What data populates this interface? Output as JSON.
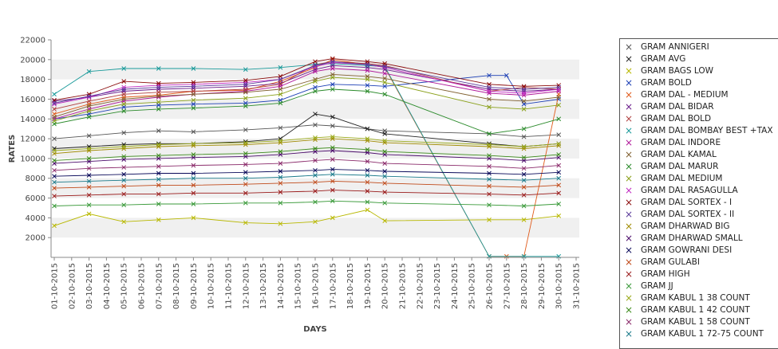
{
  "chart_data": {
    "type": "line",
    "xlabel": "DAYS",
    "ylabel": "RATES",
    "ylim": [
      0,
      22000
    ],
    "yticks": [
      2000,
      4000,
      6000,
      8000,
      10000,
      12000,
      14000,
      16000,
      18000,
      20000,
      22000
    ],
    "x_ticks": [
      "01-10-2015",
      "02-10-2015",
      "03-10-2015",
      "04-10-2015",
      "05-10-2015",
      "06-10-2015",
      "07-10-2015",
      "08-10-2015",
      "09-10-2015",
      "10-10-2015",
      "11-10-2015",
      "12-10-2015",
      "13-10-2015",
      "14-10-2015",
      "15-10-2015",
      "16-10-2015",
      "17-10-2015",
      "18-10-2015",
      "19-10-2015",
      "20-10-2015",
      "21-10-2015",
      "22-10-2015",
      "23-10-2015",
      "24-10-2015",
      "25-10-2015",
      "26-10-2015",
      "27-10-2015",
      "28-10-2015",
      "29-10-2015",
      "30-10-2015",
      "31-10-2015"
    ],
    "grid": "horizontal alternating bands",
    "legend_position": "right",
    "series": [
      {
        "name": "GRAM ANNIGERI",
        "color": "#555555",
        "x": [
          "01-10-2015",
          "03-10-2015",
          "05-10-2015",
          "07-10-2015",
          "09-10-2015",
          "12-10-2015",
          "14-10-2015",
          "16-10-2015",
          "17-10-2015",
          "19-10-2015",
          "20-10-2015",
          "26-10-2015",
          "28-10-2015",
          "30-10-2015"
        ],
        "values": [
          12000,
          12300,
          12600,
          12800,
          12700,
          12900,
          13100,
          13400,
          13300,
          13000,
          12800,
          12500,
          12200,
          12400
        ]
      },
      {
        "name": "GRAM AVG",
        "color": "#222222",
        "x": [
          "01-10-2015",
          "03-10-2015",
          "05-10-2015",
          "07-10-2015",
          "09-10-2015",
          "12-10-2015",
          "14-10-2015",
          "16-10-2015",
          "17-10-2015",
          "19-10-2015",
          "20-10-2015",
          "26-10-2015",
          "28-10-2015",
          "30-10-2015"
        ],
        "values": [
          11000,
          11200,
          11400,
          11500,
          11500,
          11700,
          12000,
          14500,
          14200,
          13000,
          12500,
          11500,
          11200,
          11500
        ]
      },
      {
        "name": "GRAM BAGS LOW",
        "color": "#b8b800",
        "x": [
          "01-10-2015",
          "03-10-2015",
          "05-10-2015",
          "07-10-2015",
          "09-10-2015",
          "12-10-2015",
          "14-10-2015",
          "16-10-2015",
          "17-10-2015",
          "19-10-2015",
          "20-10-2015",
          "26-10-2015",
          "28-10-2015",
          "30-10-2015"
        ],
        "values": [
          3200,
          4400,
          3600,
          3800,
          4000,
          3500,
          3400,
          3600,
          4000,
          4800,
          3700,
          3800,
          3800,
          4200
        ]
      },
      {
        "name": "GRAM BOLD",
        "color": "#1c3fb5",
        "x": [
          "01-10-2015",
          "03-10-2015",
          "05-10-2015",
          "07-10-2015",
          "09-10-2015",
          "12-10-2015",
          "14-10-2015",
          "16-10-2015",
          "17-10-2015",
          "19-10-2015",
          "20-10-2015",
          "26-10-2015",
          "27-10-2015",
          "28-10-2015",
          "30-10-2015"
        ],
        "values": [
          14000,
          14500,
          15200,
          15400,
          15500,
          15600,
          15900,
          17200,
          17500,
          17400,
          17300,
          18400,
          18400,
          15500,
          16000
        ]
      },
      {
        "name": "GRAM DAL - MEDIUM",
        "color": "#e05a1a",
        "x": [
          "01-10-2015",
          "03-10-2015",
          "05-10-2015",
          "07-10-2015",
          "09-10-2015",
          "12-10-2015",
          "14-10-2015",
          "16-10-2015",
          "17-10-2015",
          "19-10-2015",
          "20-10-2015",
          "26-10-2015",
          "27-10-2015",
          "28-10-2015",
          "30-10-2015"
        ],
        "values": [
          14500,
          15500,
          16200,
          16400,
          16800,
          16900,
          17800,
          19200,
          20000,
          19500,
          19200,
          100,
          100,
          100,
          16500
        ]
      },
      {
        "name": "GRAM DAL BIDAR",
        "color": "#6a1a8a",
        "x": [
          "01-10-2015",
          "03-10-2015",
          "05-10-2015",
          "07-10-2015",
          "09-10-2015",
          "12-10-2015",
          "14-10-2015",
          "16-10-2015",
          "17-10-2015",
          "19-10-2015",
          "20-10-2015",
          "26-10-2015",
          "28-10-2015",
          "30-10-2015"
        ],
        "values": [
          15800,
          16200,
          16800,
          17000,
          17100,
          17300,
          17600,
          19000,
          19400,
          19200,
          19000,
          17000,
          16800,
          17000
        ]
      },
      {
        "name": "GRAM DAL BOLD",
        "color": "#b04040",
        "x": [
          "01-10-2015",
          "03-10-2015",
          "05-10-2015",
          "07-10-2015",
          "09-10-2015",
          "12-10-2015",
          "14-10-2015",
          "16-10-2015",
          "17-10-2015",
          "19-10-2015",
          "20-10-2015",
          "26-10-2015",
          "28-10-2015",
          "30-10-2015"
        ],
        "values": [
          15000,
          15800,
          16500,
          16700,
          16800,
          17000,
          17500,
          19500,
          19800,
          19600,
          19400,
          16800,
          17200,
          17000
        ]
      },
      {
        "name": "GRAM DAL BOMBAY BEST +TAX",
        "color": "#1a9a9a",
        "x": [
          "01-10-2015",
          "03-10-2015",
          "05-10-2015",
          "07-10-2015",
          "09-10-2015",
          "12-10-2015",
          "14-10-2015",
          "16-10-2015",
          "17-10-2015",
          "19-10-2015",
          "20-10-2015",
          "26-10-2015",
          "28-10-2015",
          "30-10-2015"
        ],
        "values": [
          16500,
          18800,
          19100,
          19100,
          19100,
          19000,
          19200,
          19500,
          19600,
          19400,
          19300,
          100,
          100,
          100
        ]
      },
      {
        "name": "GRAM DAL INDORE",
        "color": "#b01a9a",
        "x": [
          "01-10-2015",
          "03-10-2015",
          "05-10-2015",
          "07-10-2015",
          "09-10-2015",
          "12-10-2015",
          "14-10-2015",
          "16-10-2015",
          "17-10-2015",
          "19-10-2015",
          "20-10-2015",
          "26-10-2015",
          "28-10-2015",
          "30-10-2015"
        ],
        "values": [
          14000,
          15000,
          15800,
          16200,
          16500,
          16800,
          17300,
          18800,
          19100,
          18900,
          18600,
          16600,
          16400,
          16800
        ]
      },
      {
        "name": "GRAM DAL KAMAL",
        "color": "#806030",
        "x": [
          "01-10-2015",
          "03-10-2015",
          "05-10-2015",
          "07-10-2015",
          "09-10-2015",
          "12-10-2015",
          "14-10-2015",
          "16-10-2015",
          "17-10-2015",
          "19-10-2015",
          "20-10-2015",
          "26-10-2015",
          "28-10-2015",
          "30-10-2015"
        ],
        "values": [
          14200,
          15300,
          16000,
          16300,
          16500,
          16700,
          17000,
          18000,
          18500,
          18300,
          18100,
          16000,
          15800,
          16200
        ]
      },
      {
        "name": "GRAM DAL MARUR",
        "color": "#2a8a2a",
        "x": [
          "01-10-2015",
          "03-10-2015",
          "05-10-2015",
          "07-10-2015",
          "09-10-2015",
          "12-10-2015",
          "14-10-2015",
          "16-10-2015",
          "17-10-2015",
          "19-10-2015",
          "20-10-2015",
          "26-10-2015",
          "28-10-2015",
          "30-10-2015"
        ],
        "values": [
          13500,
          14200,
          14800,
          15000,
          15100,
          15300,
          15600,
          16800,
          17000,
          16800,
          16500,
          12500,
          13000,
          14000
        ]
      },
      {
        "name": "GRAM DAL MEDIUM",
        "color": "#8aa01a",
        "x": [
          "01-10-2015",
          "03-10-2015",
          "05-10-2015",
          "07-10-2015",
          "09-10-2015",
          "12-10-2015",
          "14-10-2015",
          "16-10-2015",
          "17-10-2015",
          "19-10-2015",
          "20-10-2015",
          "26-10-2015",
          "28-10-2015",
          "30-10-2015"
        ],
        "values": [
          13800,
          14800,
          15500,
          15700,
          15900,
          16100,
          16500,
          17800,
          18200,
          18000,
          17700,
          15200,
          15000,
          15400
        ]
      },
      {
        "name": "GRAM DAL RASAGULLA",
        "color": "#c02ac0",
        "x": [
          "01-10-2015",
          "03-10-2015",
          "05-10-2015",
          "07-10-2015",
          "09-10-2015",
          "12-10-2015",
          "14-10-2015",
          "16-10-2015",
          "17-10-2015",
          "19-10-2015",
          "20-10-2015",
          "26-10-2015",
          "28-10-2015",
          "30-10-2015"
        ],
        "values": [
          15500,
          16200,
          17200,
          17400,
          17500,
          17700,
          18000,
          19300,
          19700,
          19500,
          19200,
          16800,
          16600,
          17000
        ]
      },
      {
        "name": "GRAM DAL SORTEX - I",
        "color": "#8a0a0a",
        "x": [
          "01-10-2015",
          "03-10-2015",
          "05-10-2015",
          "07-10-2015",
          "09-10-2015",
          "12-10-2015",
          "14-10-2015",
          "16-10-2015",
          "17-10-2015",
          "19-10-2015",
          "20-10-2015",
          "26-10-2015",
          "28-10-2015",
          "30-10-2015"
        ],
        "values": [
          15900,
          16500,
          17800,
          17600,
          17700,
          17900,
          18300,
          19800,
          20100,
          19800,
          19600,
          17500,
          17300,
          17400
        ]
      },
      {
        "name": "GRAM DAL SORTEX - II",
        "color": "#5a3a9a",
        "x": [
          "01-10-2015",
          "03-10-2015",
          "05-10-2015",
          "07-10-2015",
          "09-10-2015",
          "12-10-2015",
          "14-10-2015",
          "16-10-2015",
          "17-10-2015",
          "19-10-2015",
          "20-10-2015",
          "26-10-2015",
          "28-10-2015",
          "30-10-2015"
        ],
        "values": [
          15600,
          16300,
          17000,
          17200,
          17300,
          17500,
          18000,
          19400,
          19800,
          19500,
          19300,
          17200,
          17000,
          17200
        ]
      },
      {
        "name": "GRAM DHARWAD BIG",
        "color": "#a08a00",
        "x": [
          "01-10-2015",
          "03-10-2015",
          "05-10-2015",
          "07-10-2015",
          "09-10-2015",
          "12-10-2015",
          "14-10-2015",
          "16-10-2015",
          "17-10-2015",
          "19-10-2015",
          "20-10-2015",
          "26-10-2015",
          "28-10-2015",
          "30-10-2015"
        ],
        "values": [
          10500,
          10800,
          11000,
          11200,
          11300,
          11400,
          11600,
          11900,
          12000,
          11800,
          11600,
          11200,
          11000,
          11300
        ]
      },
      {
        "name": "GRAM DHARWAD SMALL",
        "color": "#4a0a6a",
        "x": [
          "01-10-2015",
          "03-10-2015",
          "05-10-2015",
          "07-10-2015",
          "09-10-2015",
          "12-10-2015",
          "14-10-2015",
          "16-10-2015",
          "17-10-2015",
          "19-10-2015",
          "20-10-2015",
          "26-10-2015",
          "28-10-2015",
          "30-10-2015"
        ],
        "values": [
          9500,
          9700,
          9900,
          10000,
          10100,
          10200,
          10400,
          10700,
          10800,
          10600,
          10400,
          10000,
          9800,
          10100
        ]
      },
      {
        "name": "GRAM GOWRANI DESI",
        "color": "#0a0a5a",
        "x": [
          "01-10-2015",
          "03-10-2015",
          "05-10-2015",
          "07-10-2015",
          "09-10-2015",
          "12-10-2015",
          "14-10-2015",
          "16-10-2015",
          "17-10-2015",
          "19-10-2015",
          "20-10-2015",
          "26-10-2015",
          "28-10-2015",
          "30-10-2015"
        ],
        "values": [
          8200,
          8300,
          8400,
          8500,
          8500,
          8600,
          8700,
          8800,
          8900,
          8800,
          8700,
          8500,
          8400,
          8600
        ]
      },
      {
        "name": "GRAM GULABI",
        "color": "#c04a1a",
        "x": [
          "01-10-2015",
          "03-10-2015",
          "05-10-2015",
          "07-10-2015",
          "09-10-2015",
          "12-10-2015",
          "14-10-2015",
          "16-10-2015",
          "17-10-2015",
          "19-10-2015",
          "20-10-2015",
          "26-10-2015",
          "28-10-2015",
          "30-10-2015"
        ],
        "values": [
          7000,
          7100,
          7200,
          7300,
          7300,
          7400,
          7500,
          7600,
          7700,
          7600,
          7500,
          7200,
          7100,
          7300
        ]
      },
      {
        "name": "GRAM HIGH",
        "color": "#9a1a1a",
        "x": [
          "01-10-2015",
          "03-10-2015",
          "05-10-2015",
          "07-10-2015",
          "09-10-2015",
          "12-10-2015",
          "14-10-2015",
          "16-10-2015",
          "17-10-2015",
          "19-10-2015",
          "20-10-2015",
          "26-10-2015",
          "28-10-2015",
          "30-10-2015"
        ],
        "values": [
          6200,
          6300,
          6400,
          6400,
          6500,
          6500,
          6600,
          6700,
          6800,
          6700,
          6600,
          6400,
          6300,
          6500
        ]
      },
      {
        "name": "GRAM JJ",
        "color": "#3a9a3a",
        "x": [
          "01-10-2015",
          "03-10-2015",
          "05-10-2015",
          "07-10-2015",
          "09-10-2015",
          "12-10-2015",
          "14-10-2015",
          "16-10-2015",
          "17-10-2015",
          "19-10-2015",
          "20-10-2015",
          "26-10-2015",
          "28-10-2015",
          "30-10-2015"
        ],
        "values": [
          5200,
          5300,
          5300,
          5400,
          5400,
          5500,
          5500,
          5600,
          5700,
          5600,
          5500,
          5300,
          5200,
          5400
        ]
      },
      {
        "name": "GRAM KABUL 1 38 COUNT",
        "color": "#9aaa1a",
        "x": [
          "01-10-2015",
          "03-10-2015",
          "05-10-2015",
          "07-10-2015",
          "09-10-2015",
          "12-10-2015",
          "14-10-2015",
          "16-10-2015",
          "17-10-2015",
          "19-10-2015",
          "20-10-2015",
          "26-10-2015",
          "28-10-2015",
          "30-10-2015"
        ],
        "values": [
          10800,
          11000,
          11200,
          11400,
          11500,
          11600,
          11800,
          12100,
          12200,
          12000,
          11800,
          11400,
          11200,
          11500
        ]
      },
      {
        "name": "GRAM KABUL 1 42 COUNT",
        "color": "#3a8a1a",
        "x": [
          "01-10-2015",
          "03-10-2015",
          "05-10-2015",
          "07-10-2015",
          "09-10-2015",
          "12-10-2015",
          "14-10-2015",
          "16-10-2015",
          "17-10-2015",
          "19-10-2015",
          "20-10-2015",
          "26-10-2015",
          "28-10-2015",
          "30-10-2015"
        ],
        "values": [
          9800,
          10000,
          10200,
          10300,
          10400,
          10500,
          10700,
          11000,
          11100,
          10900,
          10700,
          10300,
          10100,
          10400
        ]
      },
      {
        "name": "GRAM KABUL 1 58 COUNT",
        "color": "#8a2a6a",
        "x": [
          "01-10-2015",
          "03-10-2015",
          "05-10-2015",
          "07-10-2015",
          "09-10-2015",
          "12-10-2015",
          "14-10-2015",
          "16-10-2015",
          "17-10-2015",
          "19-10-2015",
          "20-10-2015",
          "26-10-2015",
          "28-10-2015",
          "30-10-2015"
        ],
        "values": [
          8800,
          9000,
          9100,
          9200,
          9300,
          9400,
          9500,
          9800,
          9900,
          9700,
          9500,
          9200,
          9000,
          9300
        ]
      },
      {
        "name": "GRAM KABUL 1 72-75 COUNT",
        "color": "#1a7a8a",
        "x": [
          "01-10-2015",
          "03-10-2015",
          "05-10-2015",
          "07-10-2015",
          "09-10-2015",
          "12-10-2015",
          "14-10-2015",
          "16-10-2015",
          "17-10-2015",
          "19-10-2015",
          "20-10-2015",
          "26-10-2015",
          "28-10-2015",
          "30-10-2015"
        ],
        "values": [
          7600,
          7700,
          7800,
          7900,
          8000,
          8000,
          8100,
          8300,
          8400,
          8300,
          8200,
          7900,
          7800,
          8000
        ]
      }
    ]
  }
}
